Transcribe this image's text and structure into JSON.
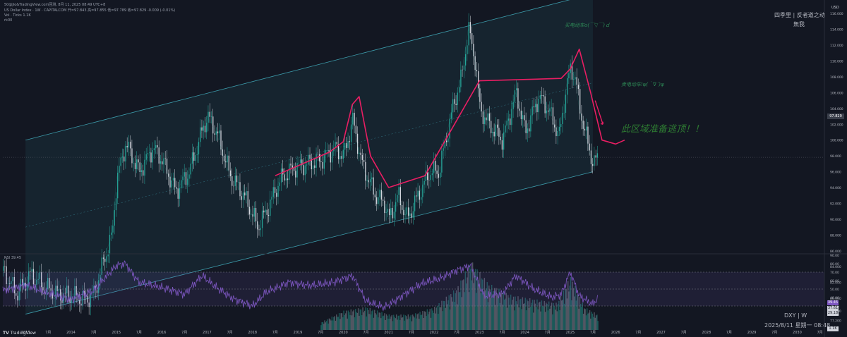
{
  "header": {
    "top_line": "50@Jio&TradingView.com回测, 8月 11, 2025 08:49 UTC+8",
    "symbol_line": "US Dollar Index · 1W · CAPITALCOM 开=97.843 高=97.855 低=97.789 收=97.829 -0.009 (-0.01%)",
    "vol_line": "Vol · Ticks 1.1K",
    "extra_line": "rk00"
  },
  "watermark": {
    "line1": "四季里 | 反者道之动",
    "line2": "無我",
    "ticker": "DXY | W",
    "datetime": "2025/8/11 星期一 08:48"
  },
  "annotations": {
    "buy": "买电动车o(￣▽￣)ｄ",
    "sell": "卖电动车!ψ(｀∇´)ψ",
    "warning": "此区域准备逃顶！！"
  },
  "price_axis": {
    "unit": "USD",
    "ticks": [
      "116.000",
      "114.000",
      "112.000",
      "110.000",
      "108.000",
      "106.000",
      "104.000",
      "102.000",
      "100.000",
      "98.000",
      "96.000",
      "94.000",
      "92.000",
      "90.000",
      "88.000",
      "86.000",
      "84.000",
      "82.000",
      "80.000",
      "78.400",
      "77.200"
    ],
    "last_price": "97.829",
    "vol_label": "1.1K"
  },
  "rsi": {
    "label": "RSI 39.45",
    "ticks": [
      "90.00",
      "80.00",
      "70.00",
      "60.00",
      "50.00",
      "40.00",
      "30.00",
      "20.00"
    ],
    "value1": "39.45",
    "value2": "37.61",
    "value3": "29.18"
  },
  "time_axis": {
    "labels": [
      "2013",
      "7月",
      "2014",
      "7月",
      "2015",
      "7月",
      "2016",
      "7月",
      "2017",
      "7月",
      "2018",
      "7月",
      "2019",
      "7月",
      "2020",
      "7月",
      "2021",
      "7月",
      "2022",
      "7月",
      "2023",
      "7月",
      "2024",
      "7月",
      "2025",
      "7月",
      "2026",
      "7月",
      "2027",
      "7月",
      "2028",
      "7月",
      "2029",
      "7月",
      "2030",
      "7月"
    ]
  },
  "footer": {
    "brand": "TradingView"
  },
  "colors": {
    "up": "#26a69a",
    "down": "#d1d4dc",
    "channel": "#4dd0e1",
    "pink": "#e91e63",
    "rsi": "#7e57c2"
  },
  "chart_data": {
    "type": "line",
    "title": "US Dollar Index",
    "xlabel": "",
    "ylabel": "",
    "xlim": [
      2012.5,
      2030.6
    ],
    "ylim": [
      76,
      117
    ],
    "series": [
      {
        "name": "DXY",
        "x": [
          2012.5,
          2012.8,
          2013.1,
          2013.4,
          2013.7,
          2014.0,
          2014.3,
          2014.5,
          2014.7,
          2014.9,
          2015.0,
          2015.2,
          2015.5,
          2015.8,
          2016.0,
          2016.3,
          2016.6,
          2016.9,
          2017.0,
          2017.2,
          2017.5,
          2017.8,
          2018.0,
          2018.1,
          2018.3,
          2018.6,
          2018.9,
          2019.2,
          2019.5,
          2019.8,
          2020.0,
          2020.2,
          2020.4,
          2020.7,
          2020.9,
          2021.0,
          2021.2,
          2021.4,
          2021.6,
          2021.9,
          2022.1,
          2022.4,
          2022.6,
          2022.75,
          2022.9,
          2023.0,
          2023.2,
          2023.5,
          2023.8,
          2024.0,
          2024.3,
          2024.5,
          2024.75,
          2024.9,
          2025.0,
          2025.1,
          2025.2,
          2025.4,
          2025.5,
          2025.61
        ],
        "y": [
          83.5,
          80.5,
          83.0,
          81.5,
          80.5,
          80.3,
          79.8,
          80.5,
          84.5,
          88.0,
          95.0,
          99.5,
          96.0,
          99.0,
          97.5,
          93.5,
          96.0,
          101.5,
          103.0,
          101.0,
          95.5,
          93.0,
          90.5,
          89.0,
          91.0,
          95.0,
          96.5,
          97.0,
          97.5,
          99.0,
          98.0,
          102.5,
          97.0,
          93.0,
          92.0,
          90.0,
          93.0,
          90.0,
          92.5,
          96.0,
          96.0,
          104.0,
          108.0,
          114.0,
          110.0,
          104.0,
          102.0,
          100.0,
          106.0,
          101.0,
          105.5,
          104.0,
          100.5,
          106.5,
          109.0,
          108.0,
          104.0,
          99.0,
          97.0,
          97.8
        ]
      },
      {
        "name": "RSI",
        "x": [
          2012.5,
          2013.0,
          2013.5,
          2014.0,
          2014.5,
          2015.0,
          2015.2,
          2015.5,
          2016.0,
          2016.5,
          2016.9,
          2017.2,
          2017.6,
          2018.0,
          2018.3,
          2018.8,
          2019.3,
          2019.8,
          2020.2,
          2020.5,
          2020.9,
          2021.3,
          2021.7,
          2022.1,
          2022.5,
          2022.8,
          2023.1,
          2023.5,
          2023.8,
          2024.2,
          2024.6,
          2024.8,
          2025.0,
          2025.2,
          2025.5,
          2025.61
        ],
        "y": [
          48,
          55,
          45,
          38,
          48,
          78,
          80,
          58,
          52,
          44,
          66,
          52,
          38,
          30,
          46,
          58,
          54,
          58,
          66,
          36,
          28,
          42,
          56,
          62,
          72,
          78,
          42,
          44,
          66,
          50,
          40,
          44,
          70,
          42,
          32,
          39.45
        ]
      },
      {
        "name": "Volume",
        "x": [
          2019.5,
          2020.0,
          2020.5,
          2021.0,
          2021.5,
          2022.0,
          2022.5,
          2022.8,
          2023.2,
          2023.7,
          2024.2,
          2024.7,
          2025.0,
          2025.3,
          2025.6
        ],
        "y": [
          0.1,
          0.25,
          0.3,
          0.2,
          0.2,
          0.3,
          0.55,
          0.9,
          0.6,
          0.45,
          0.4,
          0.35,
          0.7,
          0.3,
          0.2
        ]
      }
    ],
    "channel": {
      "upper": [
        [
          2013.0,
          100.0
        ],
        [
          2025.5,
          118.5
        ]
      ],
      "lower": [
        [
          2013.0,
          78.0
        ],
        [
          2025.5,
          96.0
        ]
      ]
    },
    "drawn_path": [
      [
        2018.5,
        95.5
      ],
      [
        2019.7,
        98.5
      ],
      [
        2020.0,
        99.8
      ],
      [
        2020.2,
        104.5
      ],
      [
        2020.35,
        105.5
      ],
      [
        2020.6,
        98.0
      ],
      [
        2021.0,
        94.0
      ],
      [
        2021.8,
        95.5
      ],
      [
        2023.0,
        107.5
      ],
      [
        2024.8,
        107.8
      ],
      [
        2025.0,
        109.0
      ],
      [
        2025.2,
        111.5
      ],
      [
        2025.45,
        106.0
      ],
      [
        2025.7,
        100.0
      ],
      [
        2026.0,
        99.5
      ],
      [
        2026.2,
        100.0
      ]
    ]
  }
}
